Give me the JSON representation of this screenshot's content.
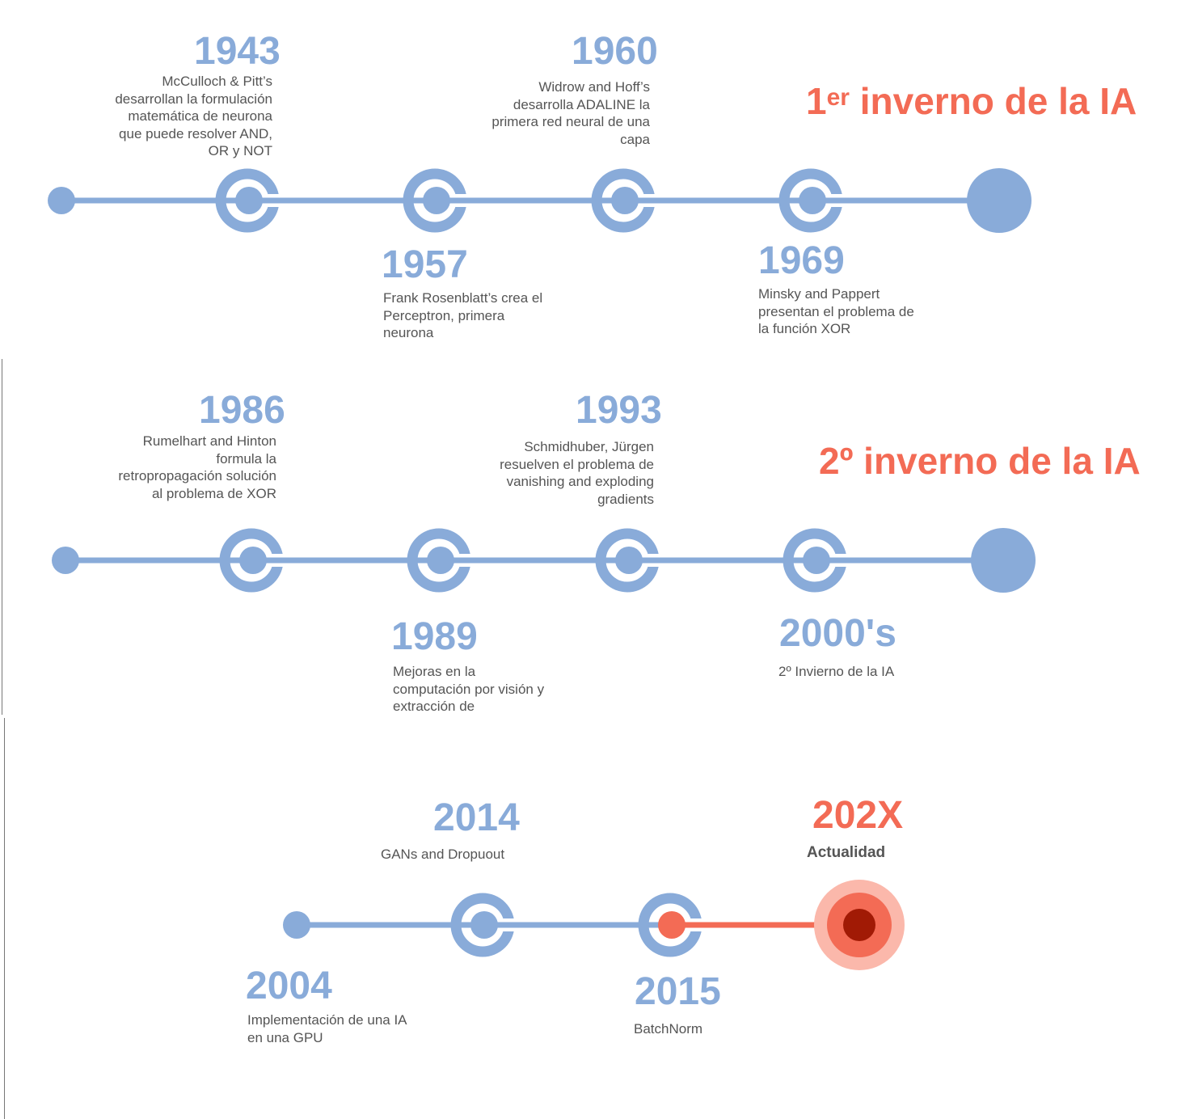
{
  "colors": {
    "timeline": "#89abd9",
    "accent": "#f36b55",
    "accent_light": "#fbb8ab",
    "accent_dark": "#a11a05",
    "text": "#555555"
  },
  "rows": [
    {
      "id": "row-1",
      "winter": {
        "prefix": "1",
        "sup": "er",
        "suffix": " inverno de la IA"
      },
      "events": [
        {
          "year": "1943",
          "lines": [
            "McCulloch & Pitt’s",
            "desarrollan la formulación",
            "matemática de neurona",
            "que puede resolver AND,",
            "OR y NOT"
          ]
        },
        {
          "year": "1957",
          "lines": [
            "Frank Rosenblatt’s crea el",
            "Perceptron, primera",
            "neurona"
          ]
        },
        {
          "year": "1960",
          "lines": [
            "Widrow and Hoff’s",
            "desarrolla ADALINE la",
            "primera red neural de una",
            "capa"
          ]
        },
        {
          "year": "1969",
          "lines": [
            "Minsky and Pappert",
            "presentan el problema de",
            "la función XOR"
          ]
        }
      ]
    },
    {
      "id": "row-2",
      "winter": {
        "prefix": "2º",
        "sup": "",
        "suffix": " inverno de la IA"
      },
      "events": [
        {
          "year": "1986",
          "lines": [
            "Rumelhart and Hinton",
            "formula la",
            "retropropagación solución",
            "al problema de XOR"
          ]
        },
        {
          "year": "1989",
          "lines": [
            "Mejoras en la",
            "computación por visión y",
            "extracción de"
          ]
        },
        {
          "year": "1993",
          "lines": [
            "Schmidhuber, Jürgen",
            "resuelven el problema de",
            "vanishing and exploding",
            "gradients"
          ]
        },
        {
          "year": "2000's",
          "lines": [
            "2º Invierno de la IA"
          ]
        }
      ]
    },
    {
      "id": "row-3",
      "events": [
        {
          "year": "2004",
          "lines": [
            "Implementación de una IA",
            "en una GPU"
          ]
        },
        {
          "year": "2014",
          "lines": [
            "GANs and Dropuout"
          ]
        },
        {
          "year": "2015",
          "lines": [
            "BatchNorm"
          ]
        },
        {
          "year": "202X",
          "lines": [
            "Actualidad"
          ]
        }
      ]
    }
  ]
}
